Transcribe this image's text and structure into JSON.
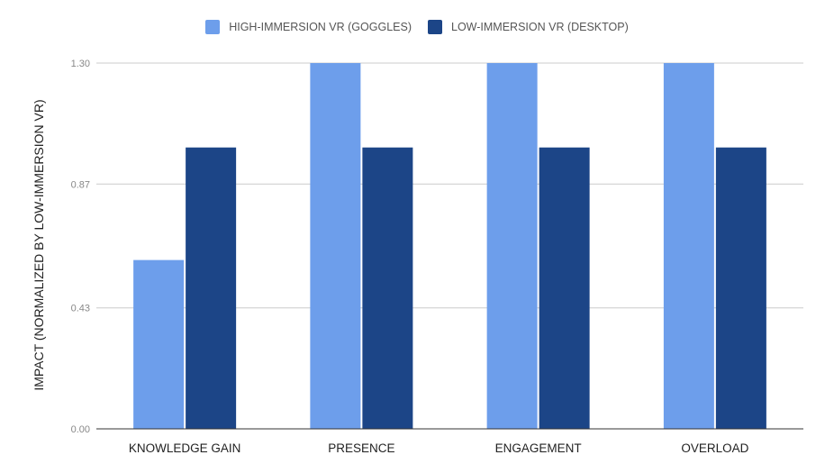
{
  "chart_data": {
    "type": "bar",
    "title": "",
    "xlabel": "",
    "ylabel": "IMPACT (NORMALIZED BY LOW-IMMERSION VR)",
    "categories": [
      "KNOWLEDGE GAIN",
      "PRESENCE",
      "ENGAGEMENT",
      "OVERLOAD"
    ],
    "series": [
      {
        "name": "HIGH-IMMERSION VR (GOGGLES)",
        "color": "#6d9eeb",
        "values": [
          0.6,
          1.3,
          1.3,
          1.3
        ]
      },
      {
        "name": "LOW-IMMERSION VR (DESKTOP)",
        "color": "#1c4587",
        "values": [
          1.0,
          1.0,
          1.0,
          1.0
        ]
      }
    ],
    "yticks": [
      "0.00",
      "0.43",
      "0.87",
      "1.30"
    ],
    "ylim": [
      0,
      1.3
    ],
    "grid": true,
    "legend_position": "top-center"
  }
}
